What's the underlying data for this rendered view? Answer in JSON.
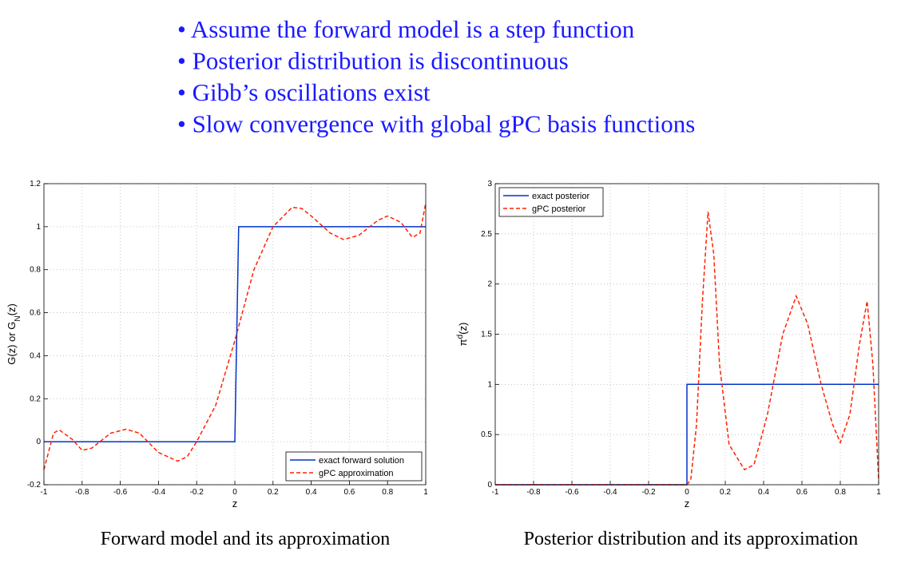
{
  "bullets": [
    "Assume the forward model is a step function",
    "Posterior distribution is discontinuous",
    "Gibb’s oscillations exist",
    "Slow convergence with global gPC basis functions"
  ],
  "chart_data": [
    {
      "type": "line",
      "caption": "Forward model and its approximation",
      "xlabel": "z",
      "ylabel": [
        "G(z) or G",
        "N",
        "(z)"
      ],
      "xlim": [
        -1,
        1
      ],
      "ylim": [
        -0.2,
        1.2
      ],
      "xticks": [
        -1,
        -0.8,
        -0.6,
        -0.4,
        -0.2,
        0,
        0.2,
        0.4,
        0.6,
        0.8,
        1
      ],
      "yticks": [
        -0.2,
        0,
        0.2,
        0.4,
        0.6,
        0.8,
        1,
        1.2
      ],
      "grid": true,
      "legend": "lower right",
      "series": [
        {
          "name": "exact forward solution",
          "color": "#0033cc",
          "dashed": false,
          "x": [
            -1,
            0,
            0.02,
            1
          ],
          "values": [
            0,
            0,
            1,
            1
          ]
        },
        {
          "name": "gPC approximation",
          "color": "#ff2200",
          "dashed": true,
          "x": [
            -1,
            -0.95,
            -0.92,
            -0.85,
            -0.8,
            -0.75,
            -0.65,
            -0.57,
            -0.5,
            -0.4,
            -0.3,
            -0.25,
            -0.2,
            -0.1,
            0,
            0.1,
            0.2,
            0.3,
            0.35,
            0.4,
            0.5,
            0.57,
            0.65,
            0.75,
            0.8,
            0.87,
            0.93,
            0.97,
            1
          ],
          "values": [
            -0.13,
            0.04,
            0.055,
            0.01,
            -0.04,
            -0.03,
            0.04,
            0.058,
            0.04,
            -0.05,
            -0.09,
            -0.07,
            0,
            0.17,
            0.47,
            0.8,
            1,
            1.09,
            1.085,
            1.05,
            0.97,
            0.94,
            0.96,
            1.03,
            1.05,
            1.02,
            0.95,
            0.97,
            1.11
          ]
        }
      ]
    },
    {
      "type": "line",
      "caption": "Posterior distribution and its approximation",
      "xlabel": "z",
      "ylabel": [
        "π",
        "d",
        "(z)"
      ],
      "xlim": [
        -1,
        1
      ],
      "ylim": [
        0,
        3
      ],
      "xticks": [
        -1,
        -0.8,
        -0.6,
        -0.4,
        -0.2,
        0,
        0.2,
        0.4,
        0.6,
        0.8,
        1
      ],
      "yticks": [
        0,
        0.5,
        1,
        1.5,
        2,
        2.5,
        3
      ],
      "grid": true,
      "legend": "upper left",
      "series": [
        {
          "name": "exact posterior",
          "color": "#0033cc",
          "dashed": false,
          "x": [
            -1,
            0,
            0,
            1
          ],
          "values": [
            0,
            0,
            1,
            1
          ]
        },
        {
          "name": "gPC posterior",
          "color": "#ff2200",
          "dashed": true,
          "x": [
            -1,
            0,
            0.02,
            0.05,
            0.08,
            0.11,
            0.14,
            0.17,
            0.22,
            0.3,
            0.35,
            0.42,
            0.5,
            0.57,
            0.63,
            0.7,
            0.76,
            0.8,
            0.85,
            0.9,
            0.94,
            0.97,
            1
          ],
          "values": [
            0,
            0,
            0.05,
            0.6,
            1.8,
            2.72,
            2.3,
            1.2,
            0.4,
            0.15,
            0.2,
            0.7,
            1.5,
            1.88,
            1.6,
            1,
            0.6,
            0.42,
            0.7,
            1.4,
            1.83,
            1.2,
            0.05
          ]
        }
      ]
    }
  ]
}
